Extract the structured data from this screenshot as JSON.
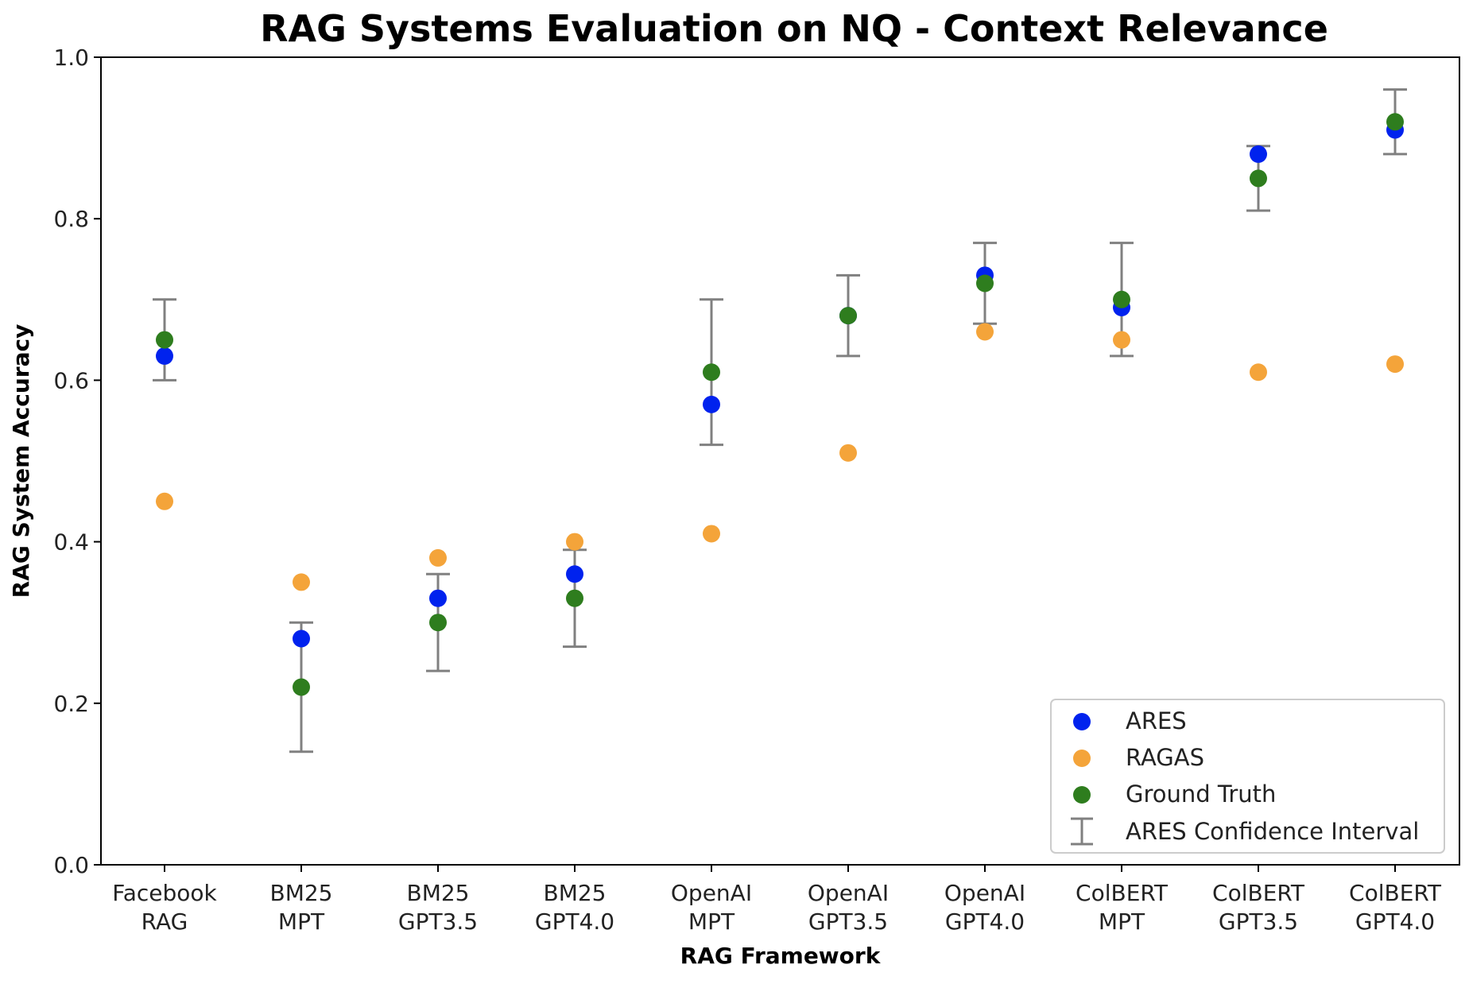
{
  "chart_data": {
    "type": "scatter",
    "title": "RAG Systems Evaluation on NQ - Context Relevance",
    "xlabel": "RAG Framework",
    "ylabel": "RAG System Accuracy",
    "ylim": [
      0.0,
      1.0
    ],
    "yticks": [
      "0.0",
      "0.2",
      "0.4",
      "0.6",
      "0.8",
      "1.0"
    ],
    "grid": false,
    "legend_position": "bottom-right",
    "categories": [
      [
        "Facebook",
        "RAG"
      ],
      [
        "BM25",
        "MPT"
      ],
      [
        "BM25",
        "GPT3.5"
      ],
      [
        "BM25",
        "GPT4.0"
      ],
      [
        "OpenAI",
        "MPT"
      ],
      [
        "OpenAI",
        "GPT3.5"
      ],
      [
        "OpenAI",
        "GPT4.0"
      ],
      [
        "ColBERT",
        "MPT"
      ],
      [
        "ColBERT",
        "GPT3.5"
      ],
      [
        "ColBERT",
        "GPT4.0"
      ]
    ],
    "series": [
      {
        "name": "ARES",
        "color": "#0022ee",
        "values": [
          0.63,
          0.28,
          0.33,
          0.36,
          0.57,
          0.68,
          0.73,
          0.69,
          0.88,
          0.91
        ]
      },
      {
        "name": "RAGAS",
        "color": "#f4a43a",
        "values": [
          0.45,
          0.35,
          0.38,
          0.4,
          0.41,
          0.51,
          0.66,
          0.65,
          0.61,
          0.62
        ]
      },
      {
        "name": "Ground Truth",
        "color": "#2e7d1e",
        "values": [
          0.65,
          0.22,
          0.3,
          0.33,
          0.61,
          0.68,
          0.72,
          0.7,
          0.85,
          0.92
        ]
      }
    ],
    "error_bars": {
      "name": "ARES Confidence Interval",
      "color": "#808080",
      "lower": [
        0.6,
        0.14,
        0.24,
        0.27,
        0.52,
        0.63,
        0.67,
        0.63,
        0.81,
        0.88
      ],
      "upper": [
        0.7,
        0.3,
        0.36,
        0.39,
        0.7,
        0.73,
        0.77,
        0.77,
        0.89,
        0.96
      ]
    }
  }
}
